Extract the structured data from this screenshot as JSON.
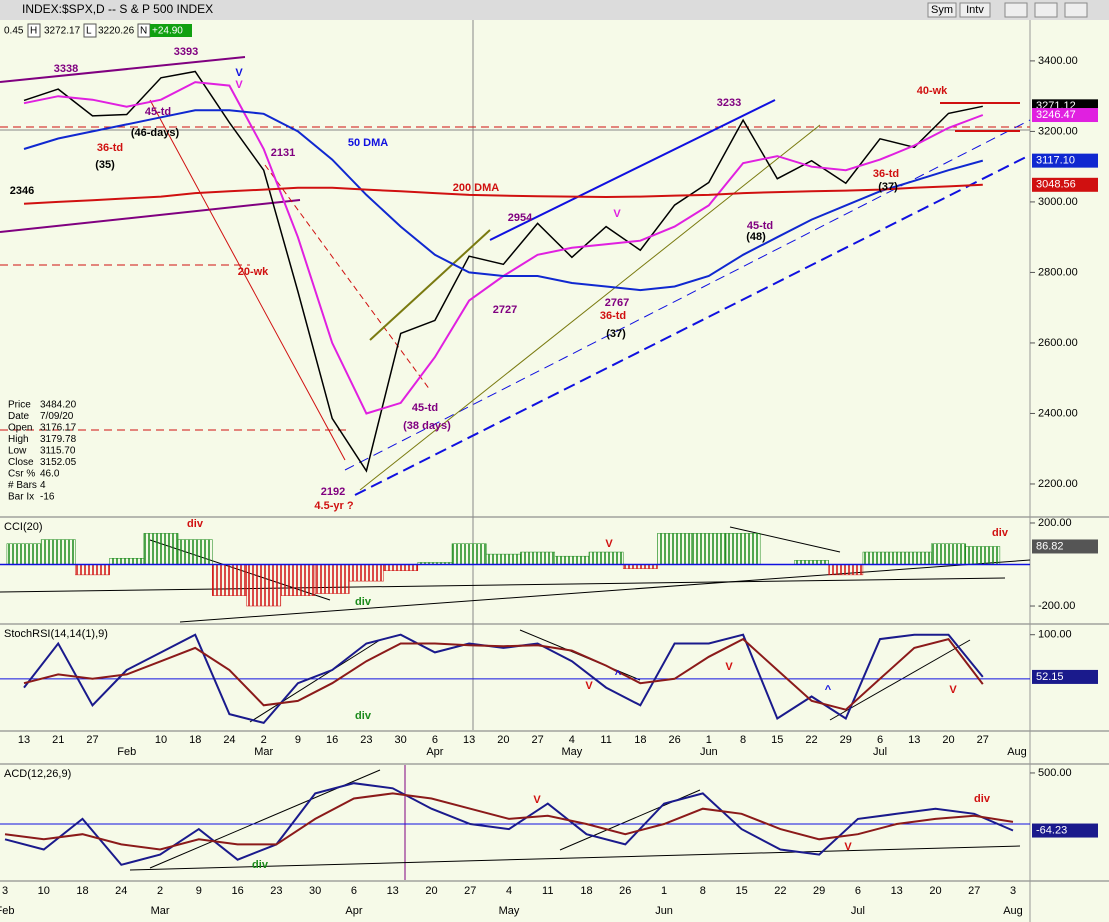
{
  "header": {
    "title": "INDEX:$SPX,D -- S & P 500 INDEX",
    "fields": [
      "0.45",
      "H",
      "3272.17",
      "L",
      "3220.26",
      "N",
      "+24.90"
    ],
    "buttons": [
      "Sym",
      "Intv"
    ]
  },
  "data_box": [
    [
      "Price",
      "3484.20"
    ],
    [
      "Date",
      "7/09/20"
    ],
    [
      "Open",
      "3176.17"
    ],
    [
      "High",
      "3179.78"
    ],
    [
      "Low",
      "3115.70"
    ],
    [
      "Close",
      "3152.05"
    ],
    [
      "Csr %",
      "46.0"
    ],
    [
      "# Bars",
      "4"
    ],
    [
      "Bar Ix",
      "-16"
    ]
  ],
  "chart_data": [
    {
      "type": "line",
      "ylim": [
        2112,
        3516
      ],
      "yticks": [
        {
          "value": 3400,
          "label": "3400.00"
        },
        {
          "value": 3200,
          "label": "3200.00"
        },
        {
          "value": 3000,
          "label": "3000.00"
        },
        {
          "value": 2800,
          "label": "2800.00"
        },
        {
          "value": 2600,
          "label": "2600.00"
        },
        {
          "value": 2400,
          "label": "2400.00"
        },
        {
          "value": 2200,
          "label": "2200.00"
        }
      ],
      "series": [
        {
          "color": "#000000",
          "last_label": "3271.12",
          "values": [
            3288,
            3320,
            3244,
            3248,
            3352,
            3370,
            3225,
            3090,
            2746,
            2386,
            2237,
            2627,
            2664,
            2846,
            2823,
            2939,
            2843,
            2930,
            2863,
            2991,
            3055,
            3232,
            3066,
            3117,
            3053,
            3179,
            3155,
            3251,
            3271.12,
            null
          ]
        },
        {
          "color": "#e020e0",
          "last_label": "3246.47",
          "values": [
            3280,
            3300,
            3290,
            3270,
            3290,
            3340,
            3330,
            3150,
            2900,
            2600,
            2400,
            2430,
            2560,
            2720,
            2790,
            2850,
            2870,
            2880,
            2890,
            2930,
            2990,
            3110,
            3130,
            3100,
            3090,
            3120,
            3160,
            3210,
            3246.47,
            null
          ]
        },
        {
          "color": "#1028d0",
          "last_label": "3117.10",
          "values": [
            3150,
            3180,
            3200,
            3220,
            3240,
            3260,
            3260,
            3250,
            3200,
            3120,
            3020,
            2930,
            2850,
            2800,
            2790,
            2790,
            2770,
            2760,
            2750,
            2760,
            2790,
            2850,
            2900,
            2950,
            2990,
            3030,
            3060,
            3090,
            3117.1,
            null
          ]
        },
        {
          "color": "#d01010",
          "last_label": "3048.56",
          "values": [
            2995,
            3000,
            3005,
            3010,
            3015,
            3025,
            3030,
            3035,
            3040,
            3040,
            3035,
            3030,
            3025,
            3020,
            3018,
            3016,
            3015,
            3014,
            3015,
            3018,
            3020,
            3025,
            3028,
            3030,
            3032,
            3035,
            3040,
            3044,
            3048.56,
            null
          ]
        }
      ],
      "annotations": [
        {
          "text": "3338",
          "color": "#800080"
        },
        {
          "text": "3393",
          "color": "#800080"
        },
        {
          "text": "V",
          "color": "#1010e0"
        },
        {
          "text": "V",
          "color": "#e020e0"
        },
        {
          "text": "45-td",
          "color": "#800080"
        },
        {
          "text": "(46-days)",
          "color": "#000000"
        },
        {
          "text": "36-td",
          "color": "#d01010"
        },
        {
          "text": "(35)",
          "color": "#000000"
        },
        {
          "text": "2131",
          "color": "#800080"
        },
        {
          "text": "50 DMA",
          "color": "#1010e0"
        },
        {
          "text": "200 DMA",
          "color": "#d01010"
        },
        {
          "text": "20-wk",
          "color": "#d01010"
        },
        {
          "text": "2954",
          "color": "#800080"
        },
        {
          "text": "2727",
          "color": "#800080"
        },
        {
          "text": "V",
          "color": "#e020e0"
        },
        {
          "text": "2767",
          "color": "#800080"
        },
        {
          "text": "36-td",
          "color": "#d01010"
        },
        {
          "text": "(37)",
          "color": "#000000"
        },
        {
          "text": "3233",
          "color": "#800080"
        },
        {
          "text": "45-td",
          "color": "#800080"
        },
        {
          "text": "(48)",
          "color": "#000000"
        },
        {
          "text": "40-wk",
          "color": "#d01010"
        },
        {
          "text": "36-td",
          "color": "#d01010"
        },
        {
          "text": "(37)",
          "color": "#000000"
        },
        {
          "text": "45-td",
          "color": "#800080"
        },
        {
          "text": "(38 days)",
          "color": "#800080"
        },
        {
          "text": "2192",
          "color": "#800080"
        },
        {
          "text": "4.5-yr ?",
          "color": "#d01010"
        },
        {
          "text": "2346",
          "color": "#000000"
        }
      ]
    },
    {
      "type": "bar",
      "title": "CCI(20)",
      "ylim": [
        -277,
        224
      ],
      "yticks": [
        {
          "value": 200,
          "label": "200.00"
        },
        {
          "value": -200,
          "label": "-200.00"
        }
      ],
      "positive_color": "#1a8a1a",
      "negative_color": "#d01010",
      "last_label": "86.82",
      "values": [
        100,
        120,
        -50,
        30,
        150,
        120,
        -150,
        -200,
        -150,
        -140,
        -80,
        -30,
        10,
        100,
        50,
        60,
        40,
        60,
        -20,
        150,
        150,
        150,
        0,
        20,
        -50,
        60,
        60,
        100,
        86.82,
        null
      ],
      "annotations": [
        {
          "text": "div",
          "color": "#d01010"
        },
        {
          "text": "V",
          "color": "#d01010"
        },
        {
          "text": "div",
          "color": "#1a8a1a"
        },
        {
          "text": "div",
          "color": "#d01010"
        }
      ]
    },
    {
      "type": "line",
      "title": "StochRSI(14,14(1),9)",
      "ylim": [
        -8,
        111
      ],
      "yticks": [
        {
          "value": 100,
          "label": "100.00"
        }
      ],
      "hline": 50,
      "categories": [
        "13",
        "21",
        "27",
        null,
        "10",
        "18",
        "24",
        "2",
        "9",
        "16",
        "23",
        "30",
        "6",
        "13",
        "20",
        "27",
        "4",
        "11",
        "18",
        "26",
        "1",
        "8",
        "15",
        "22",
        "29",
        "6",
        "13",
        "20",
        "27",
        null
      ],
      "months": [
        null,
        null,
        null,
        "Feb",
        null,
        null,
        null,
        "Mar",
        null,
        null,
        null,
        null,
        "Apr",
        null,
        null,
        null,
        "May",
        null,
        null,
        null,
        "Jun",
        null,
        null,
        null,
        null,
        "Jul",
        null,
        null,
        null,
        "Aug"
      ],
      "series": [
        {
          "color": "#1a1a8c",
          "last_label": "52.15",
          "values": [
            40,
            90,
            20,
            60,
            80,
            100,
            10,
            0,
            45,
            60,
            90,
            100,
            80,
            90,
            85,
            90,
            70,
            40,
            20,
            90,
            90,
            100,
            5,
            30,
            5,
            95,
            100,
            100,
            52.15,
            null
          ]
        },
        {
          "color": "#8b1a1a",
          "values": [
            45,
            55,
            50,
            55,
            70,
            85,
            60,
            20,
            25,
            45,
            70,
            90,
            90,
            88,
            87,
            88,
            82,
            65,
            45,
            50,
            75,
            95,
            60,
            25,
            15,
            50,
            85,
            95,
            44,
            null
          ]
        }
      ],
      "annotations": [
        {
          "text": "V",
          "color": "#d01010"
        },
        {
          "text": "^",
          "color": "#1010e0"
        },
        {
          "text": "V",
          "color": "#d01010"
        },
        {
          "text": "^",
          "color": "#1010e0"
        },
        {
          "text": "V",
          "color": "#d01010"
        },
        {
          "text": "div",
          "color": "#1a8a1a"
        }
      ]
    },
    {
      "type": "line",
      "title": "ACD(12,26,9)",
      "ylim": [
        -549,
        578
      ],
      "yticks": [
        {
          "value": 500,
          "label": "500.00"
        }
      ],
      "hline": 0,
      "categories": [
        "3",
        "10",
        "18",
        "24",
        "2",
        "9",
        "16",
        "23",
        "30",
        "6",
        "13",
        "20",
        "27",
        "4",
        "11",
        "18",
        "26",
        "1",
        "8",
        "15",
        "22",
        "29",
        "6",
        "13",
        "20",
        "27",
        "3"
      ],
      "months": [
        "Feb",
        null,
        null,
        null,
        "Mar",
        null,
        null,
        null,
        null,
        "Apr",
        null,
        null,
        null,
        "May",
        null,
        null,
        null,
        "Jun",
        null,
        null,
        null,
        null,
        "Jul",
        null,
        null,
        null,
        "Aug"
      ],
      "series": [
        {
          "color": "#1a1a8c",
          "last_label": "-64.23",
          "values": [
            -150,
            -250,
            50,
            -400,
            -300,
            -50,
            -350,
            -200,
            300,
            400,
            350,
            150,
            0,
            -50,
            200,
            -100,
            -200,
            200,
            300,
            -50,
            -250,
            -300,
            50,
            100,
            150,
            100,
            -64.23
          ]
        },
        {
          "color": "#8b1a1a",
          "values": [
            -100,
            -150,
            -100,
            -200,
            -250,
            -150,
            -200,
            -200,
            50,
            250,
            300,
            250,
            150,
            50,
            80,
            0,
            -100,
            0,
            150,
            100,
            -50,
            -150,
            -100,
            0,
            50,
            80,
            20
          ]
        }
      ],
      "annotations": [
        {
          "text": "V",
          "color": "#d01010"
        },
        {
          "text": "div",
          "color": "#1a8a1a"
        },
        {
          "text": "div",
          "color": "#d01010"
        },
        {
          "text": "V",
          "color": "#d01010"
        }
      ]
    }
  ]
}
